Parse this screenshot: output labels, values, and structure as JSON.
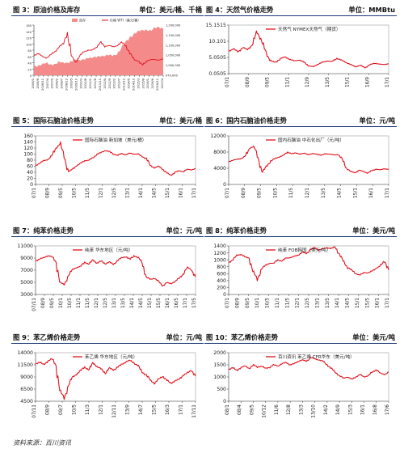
{
  "source": "资料来源：百川资讯",
  "panels": [
    {
      "title": "图 3：原油价格及库存",
      "unit": "单位：美元/桶、千桶",
      "chart_data": {
        "type": "line",
        "legend": [
          "库存",
          "价格 WTI（美元/桶）"
        ],
        "colors": [
          "#f48a8a",
          "#e0101b"
        ],
        "ylim_left": [
          0,
          160
        ],
        "ylim_right": [
          970000,
          1200000
        ],
        "yticks_left": [
          "160",
          "140",
          "120",
          "100",
          "80",
          "60",
          "40",
          "20",
          "0"
        ],
        "yticks_right": [
          "1,200,000",
          "1,150,000",
          "1,100,000",
          "1,050,000",
          "1,000,000",
          "970,000"
        ],
        "xticks": [
          "2006/1",
          "2006/6",
          "2006/11",
          "2007/4",
          "2007/9",
          "2008/2",
          "2008/7",
          "2008/12",
          "2009/5",
          "2009/10",
          "2010/3",
          "2010/8",
          "2011/1",
          "2011/6",
          "2011/11",
          "2012/4",
          "2012/9",
          "2013/2",
          "2013/7",
          "2013/12",
          "2014/5",
          "2014/10",
          "2015/3",
          "2015/8",
          "2016/1",
          "2016/6",
          "2016/11",
          "2017/4"
        ],
        "series": [
          {
            "name": "库存",
            "values": [
              1010000,
              1015000,
              1020000,
              1025000,
              1018000,
              1022000,
              1030000,
              1025000,
              1028000,
              1035000,
              1040000,
              1038000,
              1045000,
              1050000,
              1048000,
              1055000,
              1060000,
              1058000,
              1062000,
              1060000,
              1070000,
              1095000,
              1120000,
              1145000,
              1160000,
              1170000,
              1175000,
              1180000,
              1175000,
              1185000,
              1190000,
              1185000
            ]
          },
          {
            "name": "价格 WTI（美元/桶）",
            "values": [
              63,
              70,
              60,
              55,
              65,
              75,
              90,
              100,
              135,
              60,
              42,
              62,
              75,
              80,
              80,
              90,
              105,
              92,
              95,
              90,
              95,
              105,
              95,
              70,
              50,
              45,
              32,
              45,
              50,
              50,
              48,
              52
            ]
          }
        ]
      }
    },
    {
      "title": "图 4：天然气价格走势",
      "unit": "单位：MMBtu",
      "chart_data": {
        "type": "line",
        "legend": [
          "天然气 NYMEX天然气（期货）"
        ],
        "ylim": [
          0.0505,
          15.1515
        ],
        "yticks": [
          "15.1515",
          "10.101",
          "5.0505",
          "0.0505"
        ],
        "xticks": [
          "07/1",
          "08/9",
          "09/5",
          "11/1",
          "12/9",
          "13/5",
          "15/1",
          "16/9",
          "17/1"
        ],
        "series": [
          {
            "name": "天然气 NYMEX天然气（期货）",
            "values": [
              7.0,
              7.8,
              6.8,
              8.2,
              7.5,
              9.0,
              13.0,
              10.5,
              6.0,
              4.0,
              3.5,
              4.8,
              5.2,
              4.5,
              4.0,
              4.3,
              3.6,
              2.5,
              2.2,
              3.0,
              3.6,
              4.0,
              3.8,
              4.8,
              4.2,
              3.5,
              2.8,
              2.2,
              2.6,
              1.9,
              2.8,
              3.3,
              3.0,
              2.9,
              3.1
            ]
          }
        ]
      }
    },
    {
      "title": "图 5：国际石脑油价格走势",
      "unit": "单位：美元/桶",
      "chart_data": {
        "type": "line",
        "legend": [
          "国际石脑油 新加坡（美元/桶）"
        ],
        "ylim": [
          0,
          160
        ],
        "yticks": [
          "160",
          "140",
          "120",
          "100",
          "80",
          "60",
          "40",
          "20",
          "0"
        ],
        "xticks": [
          "07/1",
          "08/9",
          "09/5",
          "10/5",
          "11/5",
          "12/1",
          "12/5",
          "13/1",
          "14/1",
          "14/5",
          "15/1",
          "16/1",
          "17/1"
        ],
        "series": [
          {
            "name": "国际石脑油 新加坡（美元/桶）",
            "values": [
              62,
              70,
              78,
              82,
              95,
              120,
              135,
              90,
              42,
              50,
              62,
              70,
              78,
              80,
              88,
              100,
              105,
              112,
              108,
              100,
              96,
              102,
              98,
              103,
              100,
              100,
              92,
              85,
              62,
              55,
              60,
              50,
              38,
              30,
              40,
              45,
              42,
              50,
              48,
              52
            ]
          }
        ]
      }
    },
    {
      "title": "图 6：国内石脑油价格走势",
      "unit": "单位：元/吨",
      "chart_data": {
        "type": "line",
        "legend": [
          "国内石脑油 中石化出厂（元/吨）"
        ],
        "ylim": [
          0,
          12000
        ],
        "yticks": [
          "12000",
          "8000",
          "4000",
          "0"
        ],
        "xticks": [
          "07/1",
          "08/9",
          "09/5",
          "10/5",
          "11/5",
          "12/1",
          "13/5",
          "14/5",
          "15/1",
          "16/1",
          "17/1"
        ],
        "series": [
          {
            "name": "国内石脑油 中石化出厂（元/吨）",
            "values": [
              5600,
              6000,
              6200,
              6400,
              7000,
              9000,
              9400,
              6500,
              3000,
              4500,
              5800,
              6400,
              6800,
              7200,
              8000,
              7600,
              7800,
              7500,
              7700,
              7400,
              7600,
              7500,
              7200,
              7600,
              7500,
              7300,
              7400,
              6200,
              4000,
              3200,
              2900,
              3500,
              3200,
              2800,
              3400,
              3800,
              3600,
              3900,
              3700
            ]
          }
        ]
      }
    },
    {
      "title": "图 7：纯苯价格走势",
      "unit": "单位：元/吨",
      "chart_data": {
        "type": "line",
        "legend": [
          "纯苯 华东地区（元/吨）"
        ],
        "ylim": [
          3000,
          12000
        ],
        "yticks": [
          "11000",
          "9000",
          "7000",
          "5000",
          "3000"
        ],
        "xticks": [
          "07/11",
          "08/9",
          "09/5",
          "10/1",
          "10/5",
          "11/1",
          "11/5",
          "12/1",
          "12/5",
          "13/1",
          "13/5",
          "14/1",
          "14/5",
          "15/1",
          "15/5",
          "16/1",
          "16/5",
          "17/1",
          "17/5"
        ],
        "series": [
          {
            "name": "纯苯 华东地区（元/吨）",
            "values": [
              9200,
              9600,
              9800,
              10200,
              10000,
              9000,
              5200,
              4800,
              6500,
              7600,
              8000,
              8200,
              9000,
              8600,
              9400,
              8800,
              9200,
              8700,
              9000,
              8600,
              9300,
              9800,
              10000,
              9500,
              10200,
              9800,
              9000,
              6200,
              5800,
              6000,
              5400,
              4600,
              5200,
              5000,
              5400,
              6000,
              6800,
              8000,
              7600,
              6200
            ]
          }
        ]
      }
    },
    {
      "title": "图 8：纯苯价格走势",
      "unit": "单位：美元/吨",
      "chart_data": {
        "type": "line",
        "legend": [
          "纯苯 FOB韩国（美元/吨）"
        ],
        "ylim": [
          0,
          1400
        ],
        "yticks": [
          "1400",
          "1200",
          "1000",
          "800",
          "600",
          "400",
          "200",
          "0"
        ],
        "xticks": [
          "07/1",
          "08/9",
          "09/5",
          "10/1",
          "10/5",
          "11/1",
          "11/5",
          "12/1",
          "12/5",
          "13/1",
          "13/5",
          "14/1",
          "14/5",
          "15/1",
          "15/5",
          "16/1",
          "17/1"
        ],
        "series": [
          {
            "name": "纯苯 FOB韩国（美元/吨）",
            "values": [
              920,
              1000,
              1120,
              1160,
              1080,
              1050,
              650,
              420,
              740,
              840,
              900,
              900,
              1000,
              960,
              1050,
              1060,
              1100,
              1140,
              1220,
              1180,
              1300,
              1350,
              1280,
              1320,
              1350,
              1320,
              1380,
              1150,
              950,
              780,
              700,
              600,
              560,
              630,
              620,
              680,
              760,
              820,
              980,
              700
            ]
          }
        ]
      }
    },
    {
      "title": "图 9：苯乙烯价格走势",
      "unit": "单位：元/吨",
      "chart_data": {
        "type": "line",
        "legend": [
          "苯乙烯 华东地区（元/吨）"
        ],
        "ylim": [
          4500,
          14000
        ],
        "yticks": [
          "14000",
          "11500",
          "9000",
          "6500",
          "4500"
        ],
        "xticks": [
          "07/11",
          "08/9",
          "09/7",
          "10/5",
          "11/3",
          "12/1",
          "12/11",
          "13/9",
          "14/7",
          "15/5",
          "16/3",
          "17/1",
          "17/11"
        ],
        "series": [
          {
            "name": "苯乙烯 华东地区（元/吨）",
            "values": [
              11800,
              12200,
              11600,
              12400,
              12800,
              11500,
              6500,
              5000,
              7600,
              9200,
              9800,
              10500,
              11200,
              10600,
              12000,
              11300,
              10800,
              10000,
              11000,
              10600,
              11200,
              11700,
              12200,
              12500,
              12000,
              11400,
              10200,
              9600,
              8600,
              8000,
              8800,
              9400,
              8600,
              8000,
              8500,
              8800,
              9600,
              10000,
              10600,
              9400
            ]
          }
        ]
      }
    },
    {
      "title": "图 10：苯乙烯价格走势",
      "unit": "单位：美元/吨",
      "chart_data": {
        "type": "line",
        "legend": [
          "百川资讯 苯乙烯 CFR华东（美元/吨）"
        ],
        "ylim": [
          0,
          2000
        ],
        "yticks": [
          "2000",
          "1500",
          "1000",
          "500",
          "0"
        ],
        "xticks": [
          "08/1",
          "08/4",
          "09/5",
          "10/12",
          "11/6",
          "12/8",
          "13/3",
          "13/10",
          "14/2",
          "14/9",
          "15/3",
          "16/1",
          "16/8",
          "17/6"
        ],
        "series": [
          {
            "name": "百川资讯 苯乙烯 CFR华东（美元/吨）",
            "values": [
              1300,
              1400,
              1250,
              1400,
              1450,
              1350,
              1500,
              1400,
              1450,
              1350,
              1400,
              1500,
              1450,
              1550,
              1600,
              1500,
              1550,
              1650,
              1700,
              1650,
              1800,
              1750,
              1700,
              1650,
              1500,
              1350,
              1200,
              1050,
              950,
              1000,
              900,
              1000,
              1100,
              1000,
              1050,
              1200,
              1300,
              1150,
              1100,
              1200
            ]
          }
        ]
      }
    }
  ]
}
